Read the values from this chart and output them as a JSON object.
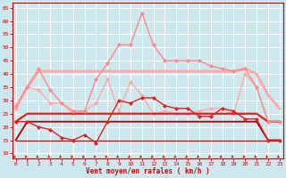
{
  "x": [
    0,
    1,
    2,
    3,
    4,
    5,
    6,
    7,
    8,
    9,
    10,
    11,
    12,
    13,
    14,
    15,
    16,
    17,
    18,
    19,
    20,
    21,
    22,
    23
  ],
  "bg_color": "#cce8ee",
  "xlabel": "Vent moyen/en rafales ( km/h )",
  "yticks": [
    10,
    15,
    20,
    25,
    30,
    35,
    40,
    45,
    50,
    55,
    60,
    65
  ],
  "ylim": [
    8,
    67
  ],
  "xlim": [
    -0.3,
    23.3
  ],
  "series": [
    {
      "name": "rafales_peak",
      "color": "#ff8888",
      "lw": 1.0,
      "marker": "D",
      "ms": 2.2,
      "zorder": 4,
      "values": [
        28,
        35,
        42,
        34,
        29,
        26,
        26,
        38,
        44,
        51,
        51,
        63,
        51,
        45,
        45,
        45,
        45,
        43,
        42,
        41,
        42,
        35,
        22,
        22
      ]
    },
    {
      "name": "rafales_avg_hi",
      "color": "#ffaaaa",
      "lw": 2.2,
      "marker": null,
      "ms": 0,
      "zorder": 2,
      "values": [
        27,
        35,
        41,
        41,
        41,
        41,
        41,
        41,
        41,
        41,
        41,
        41,
        41,
        41,
        41,
        41,
        41,
        41,
        41,
        41,
        42,
        40,
        32,
        27
      ]
    },
    {
      "name": "rafales_lower",
      "color": "#ffaaaa",
      "lw": 1.0,
      "marker": "D",
      "ms": 2.2,
      "zorder": 3,
      "values": [
        27,
        35,
        34,
        29,
        29,
        25,
        26,
        29,
        38,
        26,
        37,
        32,
        25,
        26,
        25,
        25,
        26,
        27,
        27,
        25,
        40,
        35,
        22,
        22
      ]
    },
    {
      "name": "vent_moyen_var",
      "color": "#dd2222",
      "lw": 1.0,
      "marker": "D",
      "ms": 2.2,
      "zorder": 5,
      "values": [
        22,
        22,
        20,
        19,
        16,
        15,
        17,
        14,
        22,
        30,
        29,
        31,
        31,
        28,
        27,
        27,
        24,
        24,
        27,
        26,
        23,
        23,
        15,
        15
      ]
    },
    {
      "name": "vent_avg_upper",
      "color": "#dd2222",
      "lw": 1.6,
      "marker": null,
      "ms": 0,
      "zorder": 3,
      "values": [
        22,
        25,
        25,
        25,
        25,
        25,
        25,
        25,
        25,
        25,
        25,
        25,
        25,
        25,
        25,
        25,
        25,
        25,
        25,
        25,
        25,
        25,
        22,
        22
      ]
    },
    {
      "name": "vent_avg_lower",
      "color": "#aa0000",
      "lw": 1.3,
      "marker": null,
      "ms": 0,
      "zorder": 2,
      "values": [
        15,
        22,
        22,
        22,
        22,
        22,
        22,
        22,
        22,
        22,
        22,
        22,
        22,
        22,
        22,
        22,
        22,
        22,
        22,
        22,
        22,
        22,
        15,
        15
      ]
    },
    {
      "name": "vent_flat_low",
      "color": "#cc0000",
      "lw": 0.9,
      "marker": null,
      "ms": 0,
      "zorder": 2,
      "values": [
        15,
        15,
        15,
        15,
        15,
        15,
        15,
        15,
        15,
        15,
        15,
        15,
        15,
        15,
        15,
        15,
        15,
        15,
        15,
        15,
        15,
        15,
        15,
        15
      ]
    }
  ],
  "tick_color": "#cc0000",
  "arrow_color": "#cc0000"
}
